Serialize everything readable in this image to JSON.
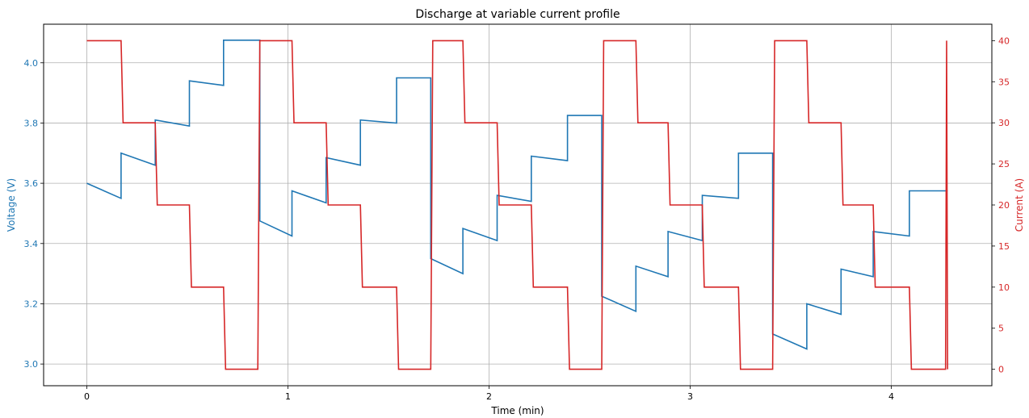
{
  "chart_data": {
    "type": "line",
    "title": "Discharge at variable current profile",
    "xlabel": "Time (min)",
    "xlim": [
      -0.215,
      4.5
    ],
    "x_ticks": [
      0,
      1,
      2,
      3,
      4
    ],
    "grid": true,
    "y_left": {
      "label": "Voltage (V)",
      "color": "#1f77b4",
      "ylim": [
        2.928,
        4.128
      ],
      "ticks": [
        3.0,
        3.2,
        3.4,
        3.6,
        3.8,
        4.0
      ],
      "tick_labels": [
        "3.0",
        "3.2",
        "3.4",
        "3.6",
        "3.8",
        "4.0"
      ]
    },
    "y_right": {
      "label": "Current (A)",
      "color": "#d62728",
      "ylim": [
        -2.0,
        42.0
      ],
      "ticks": [
        0,
        5,
        10,
        15,
        20,
        25,
        30,
        35,
        40
      ],
      "tick_labels": [
        "0",
        "5",
        "10",
        "15",
        "20",
        "25",
        "30",
        "35",
        "40"
      ]
    },
    "series": [
      {
        "axis": "left",
        "color": "#1f77b4",
        "x": [
          0,
          0.17,
          0.17,
          0.34,
          0.34,
          0.51,
          0.51,
          0.68,
          0.68,
          0.86,
          0.86,
          1.02,
          1.02,
          1.19,
          1.19,
          1.36,
          1.36,
          1.54,
          1.54,
          1.71,
          1.71,
          1.87,
          1.87,
          2.04,
          2.04,
          2.21,
          2.21,
          2.39,
          2.39,
          2.56,
          2.56,
          2.73,
          2.73,
          2.89,
          2.89,
          3.06,
          3.06,
          3.24,
          3.24,
          3.41,
          3.41,
          3.58,
          3.58,
          3.75,
          3.75,
          3.91,
          3.91,
          4.09,
          4.09,
          4.28
        ],
        "values": [
          3.6,
          3.55,
          3.7,
          3.66,
          3.81,
          3.79,
          3.94,
          3.925,
          4.075,
          4.075,
          3.475,
          3.425,
          3.575,
          3.535,
          3.685,
          3.66,
          3.81,
          3.8,
          3.95,
          3.95,
          3.35,
          3.3,
          3.45,
          3.41,
          3.56,
          3.54,
          3.69,
          3.675,
          3.825,
          3.825,
          3.225,
          3.175,
          3.325,
          3.29,
          3.44,
          3.41,
          3.56,
          3.55,
          3.7,
          3.7,
          3.1,
          3.05,
          3.2,
          3.165,
          3.315,
          3.29,
          3.44,
          3.425,
          3.575,
          3.575
        ]
      },
      {
        "axis": "right",
        "color": "#d62728",
        "x": [
          0,
          0.17,
          0.18,
          0.34,
          0.35,
          0.51,
          0.52,
          0.68,
          0.69,
          0.85,
          0.86,
          1.02,
          1.03,
          1.19,
          1.2,
          1.36,
          1.37,
          1.54,
          1.55,
          1.71,
          1.72,
          1.87,
          1.88,
          2.04,
          2.05,
          2.21,
          2.22,
          2.39,
          2.4,
          2.56,
          2.57,
          2.73,
          2.74,
          2.89,
          2.9,
          3.06,
          3.07,
          3.24,
          3.25,
          3.41,
          3.42,
          3.58,
          3.59,
          3.75,
          3.76,
          3.91,
          3.92,
          4.09,
          4.1,
          4.27,
          4.275,
          4.28
        ],
        "values": [
          40,
          40,
          30,
          30,
          20,
          20,
          10,
          10,
          0,
          0,
          40,
          40,
          30,
          30,
          20,
          20,
          10,
          10,
          0,
          0,
          40,
          40,
          30,
          30,
          20,
          20,
          10,
          10,
          0,
          0,
          40,
          40,
          30,
          30,
          20,
          20,
          10,
          10,
          0,
          0,
          40,
          40,
          30,
          30,
          20,
          20,
          10,
          10,
          0,
          0,
          40,
          0
        ]
      }
    ]
  }
}
